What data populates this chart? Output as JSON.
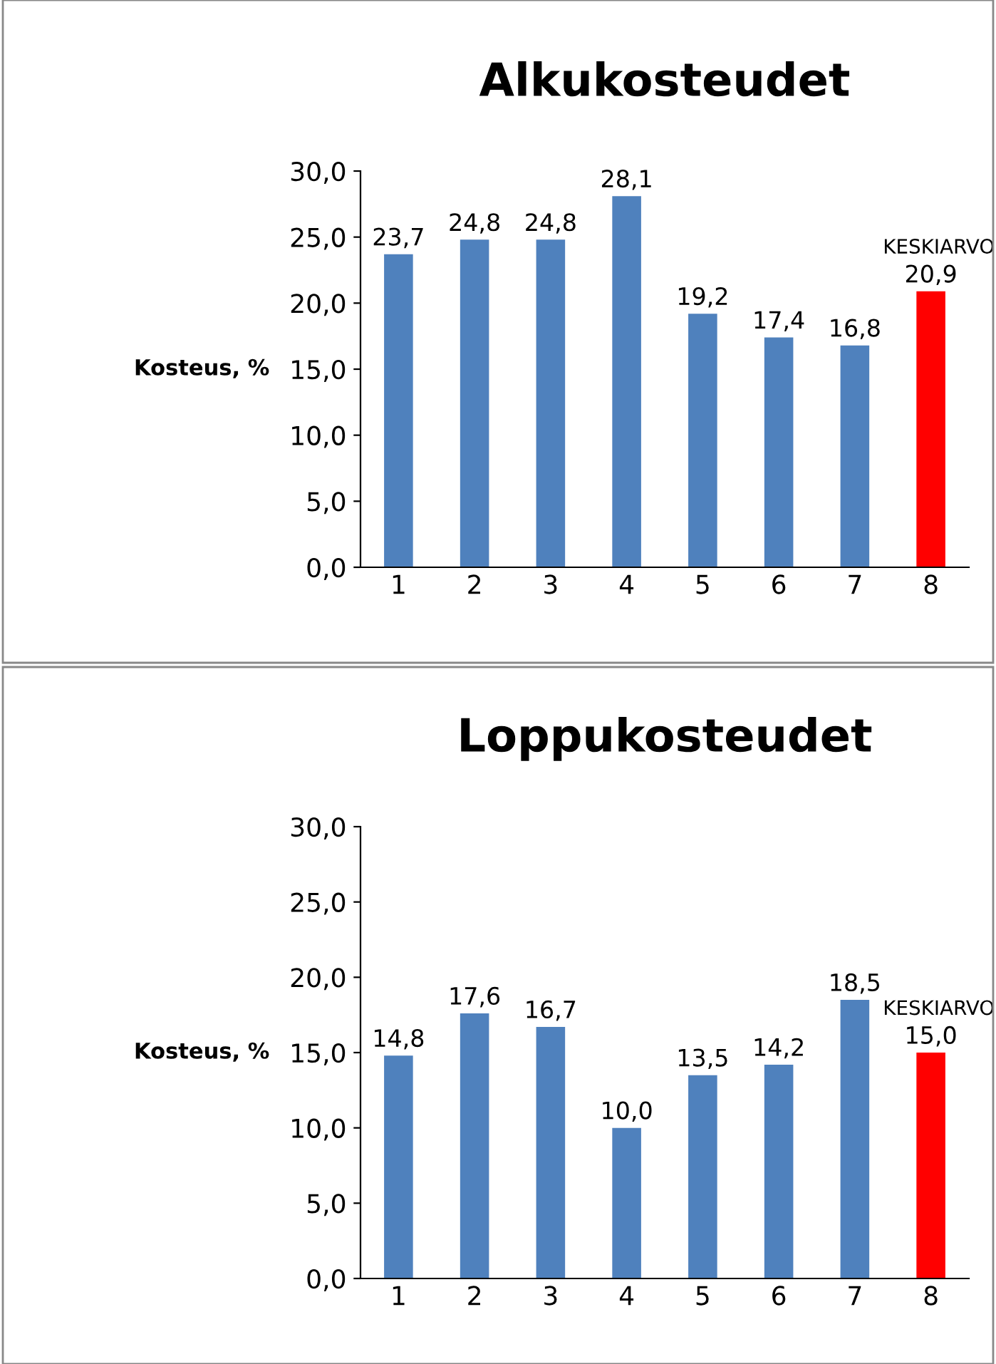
{
  "chart_data": [
    {
      "type": "bar",
      "title": "Alkukosteudet",
      "ylabel": "Kosteus, %",
      "categories": [
        "1",
        "2",
        "3",
        "4",
        "5",
        "6",
        "7",
        "8"
      ],
      "values": [
        23.7,
        24.8,
        24.8,
        28.1,
        19.2,
        17.4,
        16.8,
        20.9
      ],
      "colors": [
        "#4f81bd",
        "#4f81bd",
        "#4f81bd",
        "#4f81bd",
        "#4f81bd",
        "#4f81bd",
        "#4f81bd",
        "#ff0000"
      ],
      "value_labels": [
        "23,7",
        "24,8",
        "24,8",
        "28,1",
        "19,2",
        "17,4",
        "16,8",
        "20,9"
      ],
      "annotations": [
        {
          "text": "KESKIARVO",
          "x": "8",
          "y": 20.9
        }
      ],
      "ylim": [
        0,
        30
      ],
      "yticks": [
        {
          "value": 0,
          "label": "0,0"
        },
        {
          "value": 5,
          "label": "5,0"
        },
        {
          "value": 10,
          "label": "10,0"
        },
        {
          "value": 15,
          "label": "15,0"
        },
        {
          "value": 20,
          "label": "20,0"
        },
        {
          "value": 25,
          "label": "25,0"
        },
        {
          "value": 30,
          "label": "30,0"
        }
      ],
      "grid": false,
      "legend": false
    },
    {
      "type": "bar",
      "title": "Loppukosteudet",
      "ylabel": "Kosteus, %",
      "categories": [
        "1",
        "2",
        "3",
        "4",
        "5",
        "6",
        "7",
        "8"
      ],
      "values": [
        14.8,
        17.6,
        16.7,
        10.0,
        13.5,
        14.2,
        18.5,
        15.0
      ],
      "colors": [
        "#4f81bd",
        "#4f81bd",
        "#4f81bd",
        "#4f81bd",
        "#4f81bd",
        "#4f81bd",
        "#4f81bd",
        "#ff0000"
      ],
      "value_labels": [
        "14,8",
        "17,6",
        "16,7",
        "10,0",
        "13,5",
        "14,2",
        "18,5",
        "15,0"
      ],
      "annotations": [
        {
          "text": "KESKIARVO",
          "x": "8",
          "y": 15.0
        }
      ],
      "ylim": [
        0,
        30
      ],
      "yticks": [
        {
          "value": 0,
          "label": "0,0"
        },
        {
          "value": 5,
          "label": "5,0"
        },
        {
          "value": 10,
          "label": "10,0"
        },
        {
          "value": 15,
          "label": "15,0"
        },
        {
          "value": 20,
          "label": "20,0"
        },
        {
          "value": 25,
          "label": "25,0"
        },
        {
          "value": 30,
          "label": "30,0"
        }
      ],
      "grid": false,
      "legend": false
    }
  ]
}
